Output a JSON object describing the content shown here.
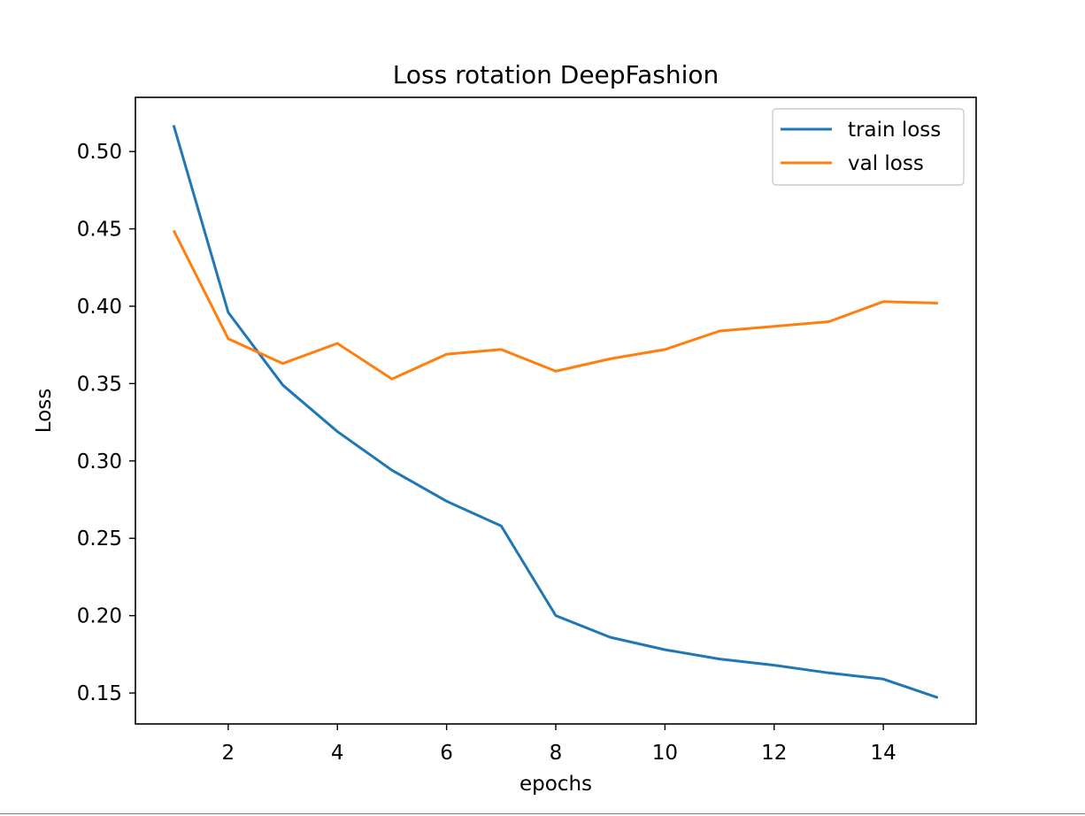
{
  "chart_data": {
    "type": "line",
    "title": "Loss rotation DeepFashion",
    "xlabel": "epochs",
    "ylabel": "Loss",
    "xlim": [
      0.3,
      15.7
    ],
    "ylim": [
      0.13,
      0.535
    ],
    "xticks": [
      2,
      4,
      6,
      8,
      10,
      12,
      14
    ],
    "xtick_labels": [
      "2",
      "4",
      "6",
      "8",
      "10",
      "12",
      "14"
    ],
    "yticks": [
      0.15,
      0.2,
      0.25,
      0.3,
      0.35,
      0.4,
      0.45,
      0.5
    ],
    "ytick_labels": [
      "0.15",
      "0.20",
      "0.25",
      "0.30",
      "0.35",
      "0.40",
      "0.45",
      "0.50"
    ],
    "grid": false,
    "legend_position": "top-right",
    "x": [
      1,
      2,
      3,
      4,
      5,
      6,
      7,
      8,
      9,
      10,
      11,
      12,
      13,
      14,
      15
    ],
    "series": [
      {
        "name": "train loss",
        "color": "#1f77b4",
        "values": [
          0.517,
          0.396,
          0.349,
          0.319,
          0.294,
          0.274,
          0.258,
          0.2,
          0.186,
          0.178,
          0.172,
          0.168,
          0.163,
          0.159,
          0.147
        ]
      },
      {
        "name": "val loss",
        "color": "#ff7f0e",
        "values": [
          0.449,
          0.379,
          0.363,
          0.376,
          0.353,
          0.369,
          0.372,
          0.358,
          0.366,
          0.372,
          0.384,
          0.387,
          0.39,
          0.403,
          0.402
        ]
      }
    ]
  }
}
